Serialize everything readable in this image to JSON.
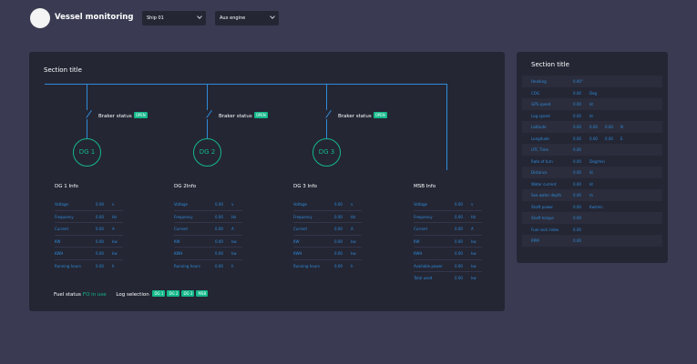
{
  "header": {
    "title": "Vessel monitoring",
    "ship_select": "Ship 01",
    "engine_select": "Aux engine"
  },
  "main": {
    "section_title": "Section title",
    "breakers": [
      {
        "label": "Braker status",
        "status": "OPEN"
      },
      {
        "label": "Braker status",
        "status": "OPEN"
      },
      {
        "label": "Braker status",
        "status": "OPEN"
      }
    ],
    "generators": [
      "DG 1",
      "DG 2",
      "DG 3"
    ],
    "info_blocks": [
      {
        "title": "DG 1 Info",
        "rows": [
          {
            "label": "Voltage",
            "value": "0.00",
            "unit": "v"
          },
          {
            "label": "Frequency",
            "value": "0.00",
            "unit": "Hz"
          },
          {
            "label": "Current",
            "value": "0.00",
            "unit": "A"
          },
          {
            "label": "KW",
            "value": "0.00",
            "unit": "kw"
          },
          {
            "label": "KWH",
            "value": "0.00",
            "unit": "kw"
          },
          {
            "label": "Running hours",
            "value": "0.00",
            "unit": "h"
          }
        ]
      },
      {
        "title": "DG 2Info",
        "rows": [
          {
            "label": "Voltage",
            "value": "0.00",
            "unit": "v"
          },
          {
            "label": "Frequency",
            "value": "0.00",
            "unit": "Hz"
          },
          {
            "label": "Current",
            "value": "0.00",
            "unit": "A"
          },
          {
            "label": "KW",
            "value": "0.00",
            "unit": "kw"
          },
          {
            "label": "KWH",
            "value": "0.00",
            "unit": "kw"
          },
          {
            "label": "Running hours",
            "value": "0.00",
            "unit": "h"
          }
        ]
      },
      {
        "title": "DG 3 Info",
        "rows": [
          {
            "label": "Voltage",
            "value": "0.00",
            "unit": "v"
          },
          {
            "label": "Frequency",
            "value": "0.00",
            "unit": "Hz"
          },
          {
            "label": "Current",
            "value": "0.00",
            "unit": "A"
          },
          {
            "label": "KW",
            "value": "0.00",
            "unit": "kw"
          },
          {
            "label": "KWH",
            "value": "0.00",
            "unit": "kw"
          },
          {
            "label": "Running hours",
            "value": "0.00",
            "unit": "h"
          }
        ]
      },
      {
        "title": "MSB Info",
        "rows": [
          {
            "label": "Voltage",
            "value": "0.00",
            "unit": "v"
          },
          {
            "label": "Frequency",
            "value": "0.00",
            "unit": "Hz"
          },
          {
            "label": "Current",
            "value": "0.00",
            "unit": "A"
          },
          {
            "label": "KW",
            "value": "0.00",
            "unit": "kw"
          },
          {
            "label": "KWH",
            "value": "0.00",
            "unit": "kw"
          },
          {
            "label": "Available power",
            "value": "0.00",
            "unit": "kw"
          },
          {
            "label": "Total used",
            "value": "0.00",
            "unit": "kw"
          }
        ]
      }
    ],
    "fuel_status_label": "Fuel status",
    "fuel_status_value": "FO in use",
    "log_selection_label": "Log selection",
    "log_buttons": [
      "DG 1",
      "DG 2",
      "DG 3",
      "MSB"
    ]
  },
  "side": {
    "section_title": "Section title",
    "rows": [
      {
        "label": "Heading",
        "v1": "0.00°",
        "v2": "",
        "v3": "",
        "unit": ""
      },
      {
        "label": "COG",
        "v1": "0.00",
        "v2": "Deg",
        "v3": "",
        "unit": ""
      },
      {
        "label": "GPS speed",
        "v1": "0.00",
        "v2": "kt",
        "v3": "",
        "unit": ""
      },
      {
        "label": "Log speed",
        "v1": "0.00",
        "v2": "kt",
        "v3": "",
        "unit": ""
      },
      {
        "label": "Latitude",
        "v1": "0.00",
        "v2": "0.00",
        "v3": "0.00",
        "unit": "N"
      },
      {
        "label": "Longitude",
        "v1": "0.00",
        "v2": "0.00",
        "v3": "0.00",
        "unit": "E"
      },
      {
        "label": "UTC Time",
        "v1": "0.00",
        "v2": "",
        "v3": "",
        "unit": ""
      },
      {
        "label": "Rate of turn",
        "v1": "0.00",
        "v2": "Deg/min",
        "v3": "",
        "unit": ""
      },
      {
        "label": "Distance",
        "v1": "0.00",
        "v2": "kt",
        "v3": "",
        "unit": ""
      },
      {
        "label": "Water current",
        "v1": "0.00",
        "v2": "kt",
        "v3": "",
        "unit": ""
      },
      {
        "label": "Sea water depth",
        "v1": "0.00",
        "v2": "m",
        "v3": "",
        "unit": ""
      },
      {
        "label": "Shaft power",
        "v1": "0.00",
        "v2": "Kw/min",
        "v3": "",
        "unit": ""
      },
      {
        "label": "Shaft torque",
        "v1": "0.00",
        "v2": "",
        "v3": "",
        "unit": ""
      },
      {
        "label": "Fuel rack index",
        "v1": "0.00",
        "v2": "",
        "v3": "",
        "unit": ""
      },
      {
        "label": "RPM",
        "v1": "0.00",
        "v2": "",
        "v3": "",
        "unit": ""
      }
    ]
  },
  "colors": {
    "background": "#3a3b52",
    "panel": "#242634",
    "accent_blue": "#2f8bd9",
    "accent_green": "#13b88a"
  }
}
